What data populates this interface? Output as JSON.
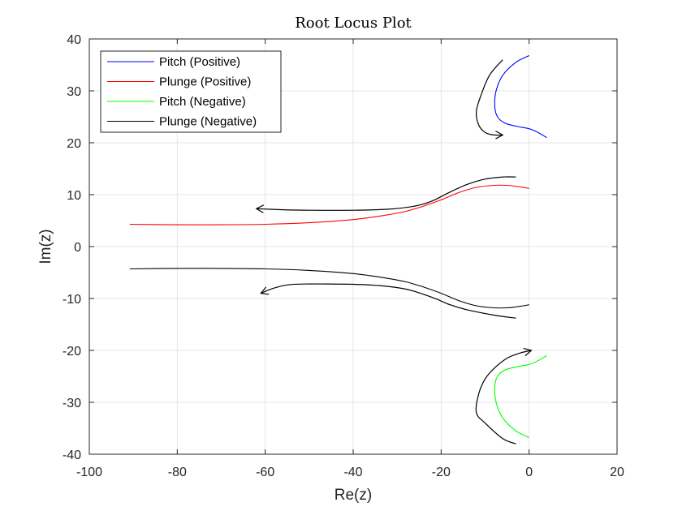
{
  "chart_data": {
    "type": "line",
    "title": "Root Locus Plot",
    "xlabel": "Re(z)",
    "ylabel": "Im(z)",
    "xlim": [
      -100,
      20
    ],
    "ylim": [
      -40,
      40
    ],
    "xticks": [
      -100,
      -80,
      -60,
      -40,
      -20,
      0,
      20
    ],
    "yticks": [
      -40,
      -30,
      -20,
      -10,
      0,
      10,
      20,
      30,
      40
    ],
    "xtick_labels": [
      "-100",
      "-80",
      "-60",
      "-40",
      "-20",
      "0",
      "20"
    ],
    "ytick_labels": [
      "-40",
      "-30",
      "-20",
      "-10",
      "0",
      "10",
      "20",
      "30",
      "40"
    ],
    "grid": true,
    "legend_position": "top-left",
    "series": [
      {
        "name": "Pitch (Positive)",
        "color": "#0000ff",
        "x": [
          0,
          -3,
          -6,
          -7.5,
          -7.8,
          -7.2,
          -5.5,
          -3,
          0,
          2,
          4
        ],
        "y": [
          36.8,
          35.5,
          33,
          30,
          27,
          25,
          23.8,
          23.2,
          22.7,
          22,
          21
        ]
      },
      {
        "name": "Plunge (Positive)",
        "color": "#ff0000",
        "x": [
          -90.8,
          -80,
          -70,
          -60,
          -50,
          -40,
          -33,
          -28,
          -24,
          -20,
          -16,
          -12,
          -8,
          -5,
          -2,
          0
        ],
        "y": [
          4.3,
          4.2,
          4.2,
          4.3,
          4.6,
          5.2,
          6.0,
          6.8,
          7.8,
          9.0,
          10.4,
          11.4,
          11.8,
          11.8,
          11.5,
          11.2
        ]
      },
      {
        "name": "Pitch (Negative)",
        "color": "#00ff00",
        "x": [
          0,
          -3,
          -6,
          -7.5,
          -7.8,
          -7.2,
          -5.5,
          -3,
          0,
          2,
          4
        ],
        "y": [
          -36.8,
          -35.5,
          -33,
          -30,
          -27,
          -25,
          -23.8,
          -23.2,
          -22.7,
          -22,
          -21
        ]
      },
      {
        "name": "Plunge (Negative)",
        "color": "#000000",
        "x": [
          -90.8,
          -80,
          -70,
          -60,
          -50,
          -40,
          -33,
          -28,
          -24,
          -20,
          -16,
          -12,
          -8,
          -5,
          -2,
          0
        ],
        "y": [
          -4.3,
          -4.2,
          -4.2,
          -4.3,
          -4.6,
          -5.2,
          -6.0,
          -6.8,
          -7.8,
          -9.0,
          -10.4,
          -11.4,
          -11.8,
          -11.8,
          -11.5,
          -11.2
        ]
      }
    ],
    "annotations": [
      {
        "kind": "arrow",
        "color": "#000000",
        "x": [
          -6,
          -9,
          -11,
          -12,
          -11.5,
          -10,
          -8,
          -6
        ],
        "y": [
          36,
          33,
          29,
          26,
          23.5,
          22,
          21.5,
          21.5
        ]
      },
      {
        "kind": "arrow",
        "color": "#000000",
        "x": [
          -3,
          -6,
          -10,
          -14,
          -18,
          -22,
          -26,
          -32,
          -40,
          -50,
          -56,
          -62
        ],
        "y": [
          13.4,
          13.4,
          13.0,
          12.0,
          10.5,
          8.8,
          7.8,
          7.2,
          7.0,
          7.0,
          7.1,
          7.3
        ]
      },
      {
        "kind": "arrow",
        "color": "#000000",
        "x": [
          -3,
          -8,
          -14,
          -18,
          -22,
          -28,
          -36,
          -46,
          -54,
          -58,
          -61
        ],
        "y": [
          -13.8,
          -13.2,
          -12.2,
          -11.2,
          -9.8,
          -8.2,
          -7.4,
          -7.2,
          -7.3,
          -8.0,
          -9.0
        ]
      },
      {
        "kind": "arrow",
        "color": "#000000",
        "x": [
          -3,
          -6,
          -10,
          -12,
          -11.5,
          -10,
          -8,
          -5,
          -2,
          0.5
        ],
        "y": [
          -38,
          -37,
          -34,
          -32,
          -28.5,
          -25.5,
          -23.5,
          -21.5,
          -20.5,
          -20
        ]
      }
    ]
  }
}
